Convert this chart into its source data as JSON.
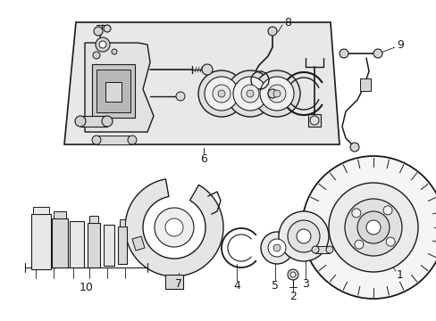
{
  "background_color": "#ffffff",
  "line_color": "#1a1a1a",
  "panel_fill": "#e8e8e8",
  "figsize": [
    4.89,
    3.6
  ],
  "dpi": 100
}
